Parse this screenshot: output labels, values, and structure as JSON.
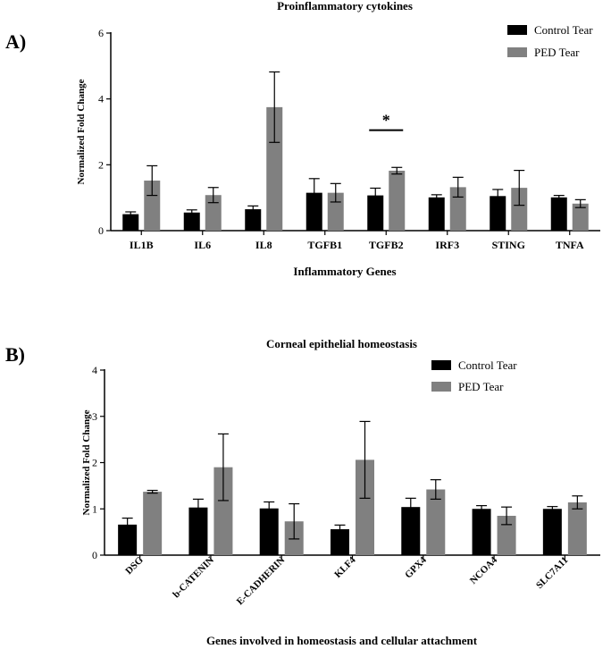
{
  "colors": {
    "control": "#000000",
    "ped": "#808080",
    "axis": "#000000"
  },
  "chart_data": [
    {
      "panel_label": "A)",
      "type": "bar",
      "title": "Proinflammatory cytokines",
      "xlabel": "Inflammatory Genes",
      "ylabel": "Normalized Fold Change",
      "ylim": [
        0,
        6
      ],
      "yticks": [
        "0",
        "2",
        "4",
        "6"
      ],
      "legend_position": "top-right",
      "categories": [
        "IL1B",
        "IL6",
        "IL8",
        "TGFB1",
        "TGFB2",
        "IRF3",
        "STING",
        "TNFA"
      ],
      "series": [
        {
          "name": "Control Tear",
          "values": [
            0.5,
            0.55,
            0.65,
            1.15,
            1.07,
            1.01,
            1.05,
            1.01
          ],
          "errors": [
            0.07,
            0.08,
            0.1,
            0.43,
            0.22,
            0.08,
            0.2,
            0.06
          ]
        },
        {
          "name": "PED Tear",
          "values": [
            1.52,
            1.08,
            3.75,
            1.15,
            1.82,
            1.32,
            1.3,
            0.82
          ],
          "errors": [
            0.45,
            0.23,
            1.07,
            0.28,
            0.1,
            0.3,
            0.53,
            0.12
          ]
        }
      ],
      "annotations": [
        {
          "text": "*",
          "category": "TGFB2",
          "bracket_y": 3.05
        }
      ]
    },
    {
      "panel_label": "B)",
      "type": "bar",
      "title": "Corneal epithelial homeostasis",
      "xlabel": "Genes involved in homeostasis and cellular attachment",
      "ylabel": "Normalized Fold Change",
      "ylim": [
        0,
        4
      ],
      "yticks": [
        "0",
        "1",
        "2",
        "3",
        "4"
      ],
      "legend_position": "top-right",
      "categories": [
        "DSG",
        "b-CATENIN",
        "E-CADHERIN",
        "KLF4",
        "GPX4",
        "NCOA4",
        "SLC7A11"
      ],
      "series": [
        {
          "name": "Control Tear",
          "values": [
            0.66,
            1.03,
            1.01,
            0.56,
            1.04,
            1.0,
            1.0
          ],
          "errors": [
            0.14,
            0.18,
            0.14,
            0.09,
            0.19,
            0.07,
            0.05
          ]
        },
        {
          "name": "PED Tear",
          "values": [
            1.37,
            1.9,
            0.73,
            2.06,
            1.42,
            0.85,
            1.14
          ],
          "errors": [
            0.03,
            0.72,
            0.38,
            0.83,
            0.21,
            0.19,
            0.14
          ]
        }
      ]
    }
  ]
}
